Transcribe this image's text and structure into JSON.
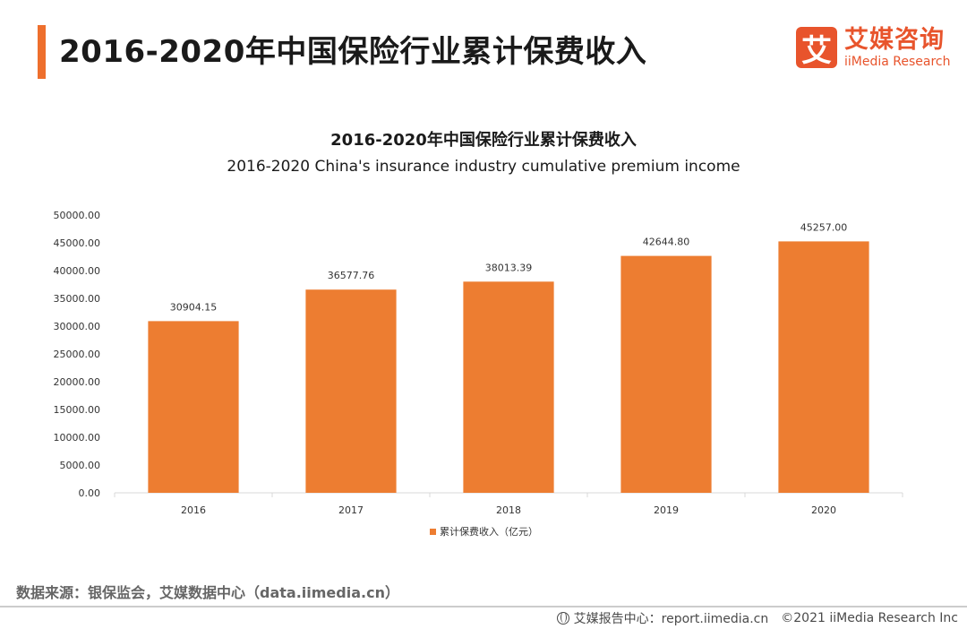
{
  "header": {
    "title": "2016-2020年中国保险行业累计保费收入",
    "logo_mark": "艾",
    "logo_cn": "艾媒咨询",
    "logo_en": "iiMedia Research"
  },
  "chart_data": {
    "type": "bar",
    "title": "2016-2020年中国保险行业累计保费收入",
    "subtitle": "2016-2020 China's insurance industry cumulative premium income",
    "categories": [
      "2016",
      "2017",
      "2018",
      "2019",
      "2020"
    ],
    "series": [
      {
        "name": "累计保费收入（亿元）",
        "values": [
          30904.15,
          36577.76,
          38013.39,
          42644.8,
          45257.0
        ],
        "labels": [
          "30904.15",
          "36577.76",
          "38013.39",
          "42644.80",
          "45257.00"
        ],
        "color": "#ed7d31"
      }
    ],
    "y_ticks": [
      "0.00",
      "5000.00",
      "10000.00",
      "15000.00",
      "20000.00",
      "25000.00",
      "30000.00",
      "35000.00",
      "40000.00",
      "45000.00",
      "50000.00"
    ],
    "ylim": [
      0,
      50000
    ],
    "xlabel": "",
    "ylabel": "",
    "grid": false,
    "legend_position": "bottom"
  },
  "footer": {
    "source": "数据来源：银保监会，艾媒数据中心（data.iimedia.cn）",
    "report_center": "艾媒报告中心：report.iimedia.cn",
    "copyright": "©2021  iiMedia Research  Inc"
  }
}
